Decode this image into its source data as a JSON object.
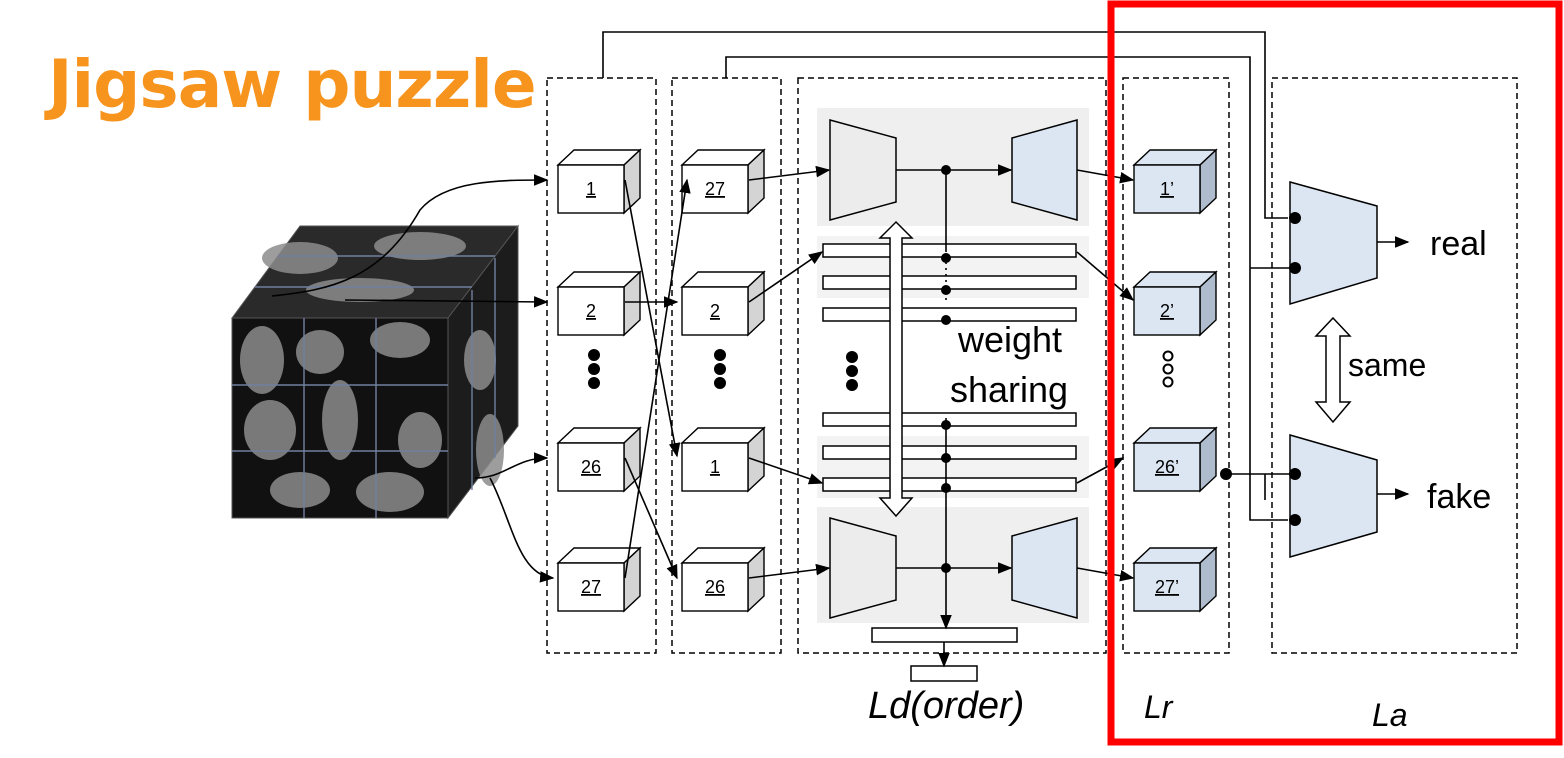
{
  "title": "Jigsaw puzzle",
  "colors": {
    "title": "#f7941d",
    "highlight": "#ff0000",
    "decoder": "#dce6f2",
    "encoder": "#ececec",
    "panel": "#efefef"
  },
  "input_column": [
    "1",
    "2",
    "26",
    "27"
  ],
  "shuffled_column": [
    "27",
    "2",
    "1",
    "26"
  ],
  "output_column": [
    "1’",
    "2’",
    "26’",
    "27’"
  ],
  "weight_sharing_label": [
    "weight",
    "sharing"
  ],
  "discriminator_outputs": {
    "real": "real",
    "fake": "fake",
    "same": "same"
  },
  "losses": {
    "order": "Ld(order)",
    "reconstruction": "Lr",
    "adversarial": "La"
  }
}
